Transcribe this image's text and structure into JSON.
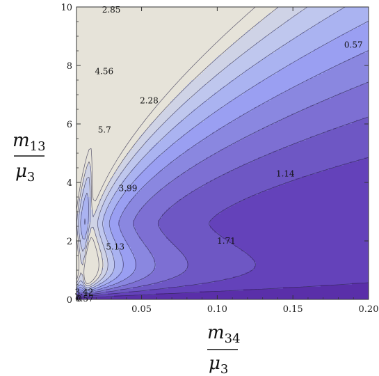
{
  "chart_data": {
    "type": "contour",
    "title": "",
    "xlabel": {
      "numerator": "m",
      "numerator_sub": "34",
      "denominator": "μ",
      "denominator_sub": "3"
    },
    "ylabel": {
      "numerator": "m",
      "numerator_sub": "13",
      "denominator": "μ",
      "denominator_sub": "3"
    },
    "xlim": [
      0.007,
      0.2
    ],
    "ylim": [
      0,
      10
    ],
    "x_ticks": [
      {
        "value": 0.05,
        "label": "0.05"
      },
      {
        "value": 0.1,
        "label": "0.10"
      },
      {
        "value": 0.15,
        "label": "0.15"
      },
      {
        "value": 0.2,
        "label": "0.20"
      }
    ],
    "y_ticks": [
      {
        "value": 0,
        "label": "0"
      },
      {
        "value": 2,
        "label": "2"
      },
      {
        "value": 4,
        "label": "4"
      },
      {
        "value": 6,
        "label": "6"
      },
      {
        "value": 8,
        "label": "8"
      },
      {
        "value": 10,
        "label": "10"
      }
    ],
    "contour_levels": [
      0.57,
      1.14,
      1.71,
      2.28,
      2.85,
      3.42,
      3.99,
      4.56,
      5.13,
      5.7
    ],
    "contour_labels": [
      {
        "text": "0.57",
        "x": 0.19,
        "y": 8.7
      },
      {
        "text": "1.14",
        "x": 0.145,
        "y": 4.3
      },
      {
        "text": "1.71",
        "x": 0.106,
        "y": 2.0
      },
      {
        "text": "2.28",
        "x": 0.055,
        "y": 6.8
      },
      {
        "text": "2.85",
        "x": 0.03,
        "y": 9.9
      },
      {
        "text": "3.42",
        "x": 0.012,
        "y": 0.25
      },
      {
        "text": "3.99",
        "x": 0.041,
        "y": 3.8
      },
      {
        "text": "4.56",
        "x": 0.0253,
        "y": 7.8
      },
      {
        "text": "5.13",
        "x": 0.0326,
        "y": 1.8
      },
      {
        "text": "5.7",
        "x": 0.0255,
        "y": 5.8
      },
      {
        "text": "0",
        "x": 0.0088,
        "y": 0.02
      },
      {
        "text": "0.57",
        "x": 0.0122,
        "y": 0.02
      }
    ],
    "grid": false,
    "legend": "none",
    "colors": {
      "background": "#ffffff",
      "frame": "#333333",
      "bands": [
        "#e6e3d9",
        "#cfd3e6",
        "#bfc7ee",
        "#aab3f1",
        "#9a9ff2",
        "#8a87e0",
        "#7d6fd3",
        "#6e57c4",
        "#6442ba",
        "#5a2fa9"
      ],
      "contour_line": "#2e2a4a"
    }
  }
}
